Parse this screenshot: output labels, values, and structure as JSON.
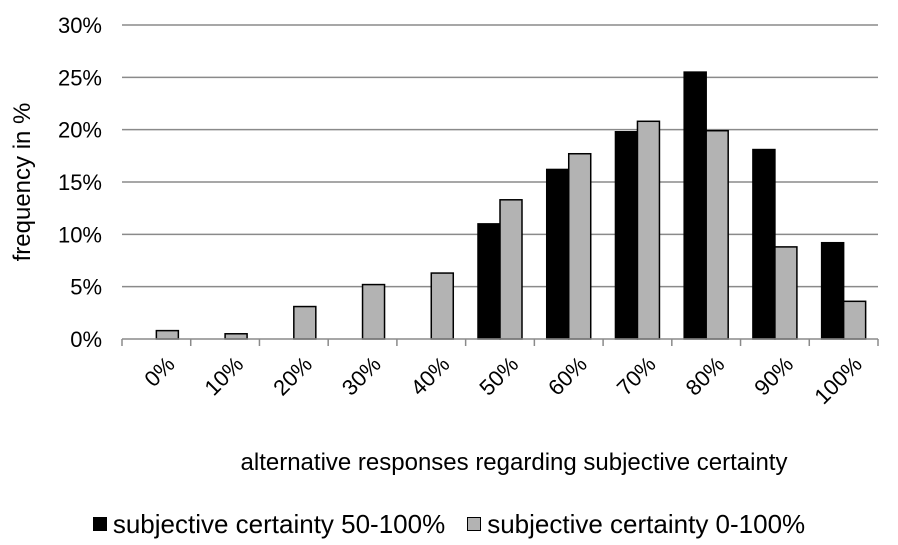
{
  "chart_data": {
    "type": "bar",
    "ylabel": "frequency in %",
    "xlabel": "alternative responses regarding subjective certainty",
    "categories": [
      "0%",
      "10%",
      "20%",
      "30%",
      "40%",
      "50%",
      "60%",
      "70%",
      "80%",
      "90%",
      "100%"
    ],
    "ylim": [
      0,
      30
    ],
    "yticks": [
      "0%",
      "5%",
      "10%",
      "15%",
      "20%",
      "25%",
      "30%"
    ],
    "grid": true,
    "legend_position": "bottom",
    "series": [
      {
        "name": "subjective certainty 50-100%",
        "color": "#000000",
        "values": [
          0,
          0,
          0,
          0,
          0,
          11.0,
          16.2,
          19.8,
          25.5,
          18.1,
          9.2
        ]
      },
      {
        "name": "subjective certainty 0-100%",
        "color": "#b3b3b3",
        "values": [
          0.8,
          0.5,
          3.1,
          5.2,
          6.3,
          13.3,
          17.7,
          20.8,
          19.9,
          8.8,
          3.6
        ]
      }
    ]
  }
}
